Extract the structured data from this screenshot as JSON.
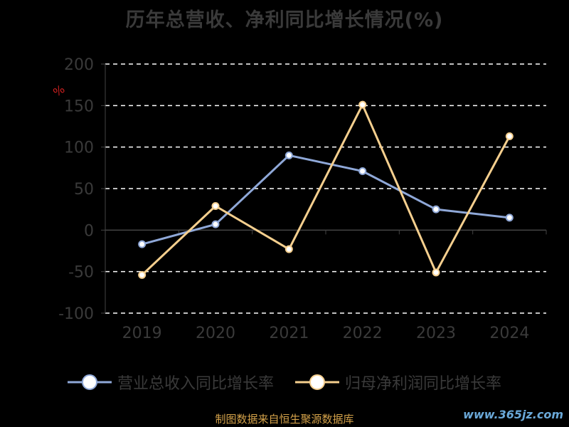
{
  "chart_data": {
    "type": "line",
    "title": "历年总营收、净利同比增长情况(%)",
    "ylabel": "%",
    "xlabel": "",
    "categories": [
      "2019",
      "2020",
      "2021",
      "2022",
      "2023",
      "2024"
    ],
    "ylim": [
      -100,
      200
    ],
    "yticks": [
      -100,
      -50,
      0,
      50,
      100,
      150,
      200
    ],
    "grid": true,
    "legend_position": "bottom",
    "series": [
      {
        "name": "营业总收入同比增长率",
        "color": "#8fa8d8",
        "values": [
          -17,
          7,
          90,
          71,
          25,
          15
        ]
      },
      {
        "name": "归母净利润同比增长率",
        "color": "#f5cf8e",
        "values": [
          -54,
          29,
          -23,
          151,
          -51,
          113
        ]
      }
    ]
  },
  "footer": {
    "source": "制图数据来自恒生聚源数据库",
    "watermark": "www.365jz.com"
  }
}
